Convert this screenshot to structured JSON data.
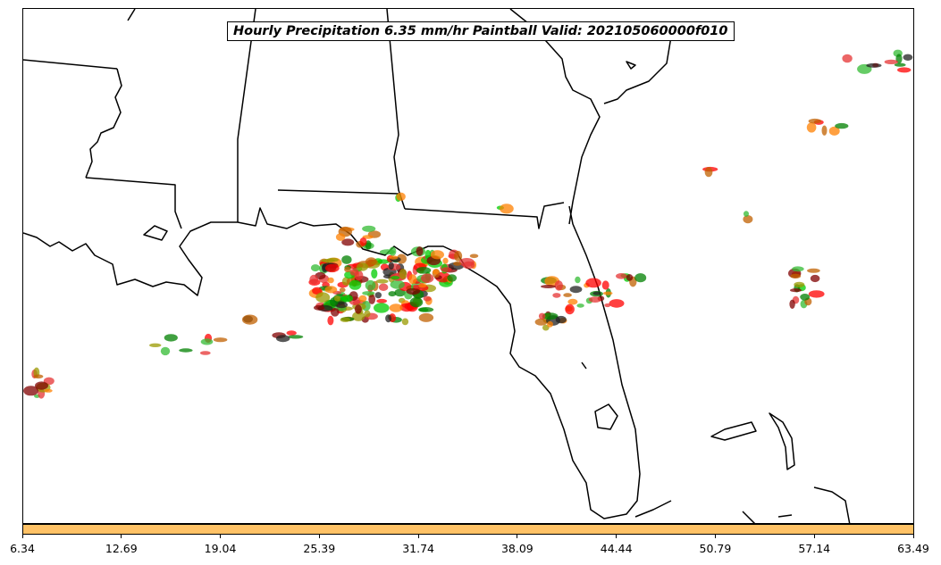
{
  "title": "Hourly Precipitation 6.35 mm/hr Paintball Valid: 202105060000f010",
  "colorbar": {
    "color": "#ffc266",
    "tick_labels": [
      "6.34",
      "12.69",
      "19.04",
      "25.39",
      "31.74",
      "38.09",
      "44.44",
      "50.79",
      "57.14",
      "63.49"
    ]
  },
  "member_colors": [
    "#ff0000",
    "#ff8000",
    "#00cc00",
    "#008000",
    "#999900",
    "#800000",
    "#c06000",
    "#33bb33",
    "#222222",
    "#e63333"
  ]
}
